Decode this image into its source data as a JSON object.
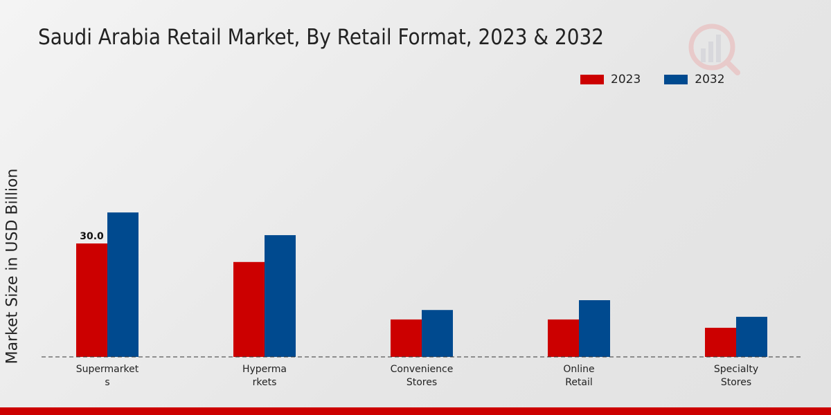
{
  "chart_data": {
    "type": "bar",
    "title": "Saudi Arabia Retail Market, By Retail Format, 2023 & 2032",
    "xlabel": "",
    "ylabel": "Market Size in USD Billion",
    "categories": [
      [
        "Supermarket",
        "s"
      ],
      [
        "Hyperma",
        "rkets"
      ],
      [
        "Convenience",
        "Stores"
      ],
      [
        "Online",
        "Retail"
      ],
      [
        "Specialty",
        "Stores"
      ]
    ],
    "series": [
      {
        "name": "2023",
        "color": "#cc0000",
        "values": [
          30.0,
          25.1,
          9.9,
          9.9,
          7.7
        ]
      },
      {
        "name": "2032",
        "color": "#004a8f",
        "values": [
          38.2,
          32.2,
          12.4,
          15.0,
          10.6
        ]
      }
    ],
    "data_labels": [
      {
        "series": 0,
        "index": 0,
        "text": "30.0"
      }
    ],
    "ylim": [
      0,
      40
    ],
    "grid": false,
    "legend_position": "top-right"
  }
}
